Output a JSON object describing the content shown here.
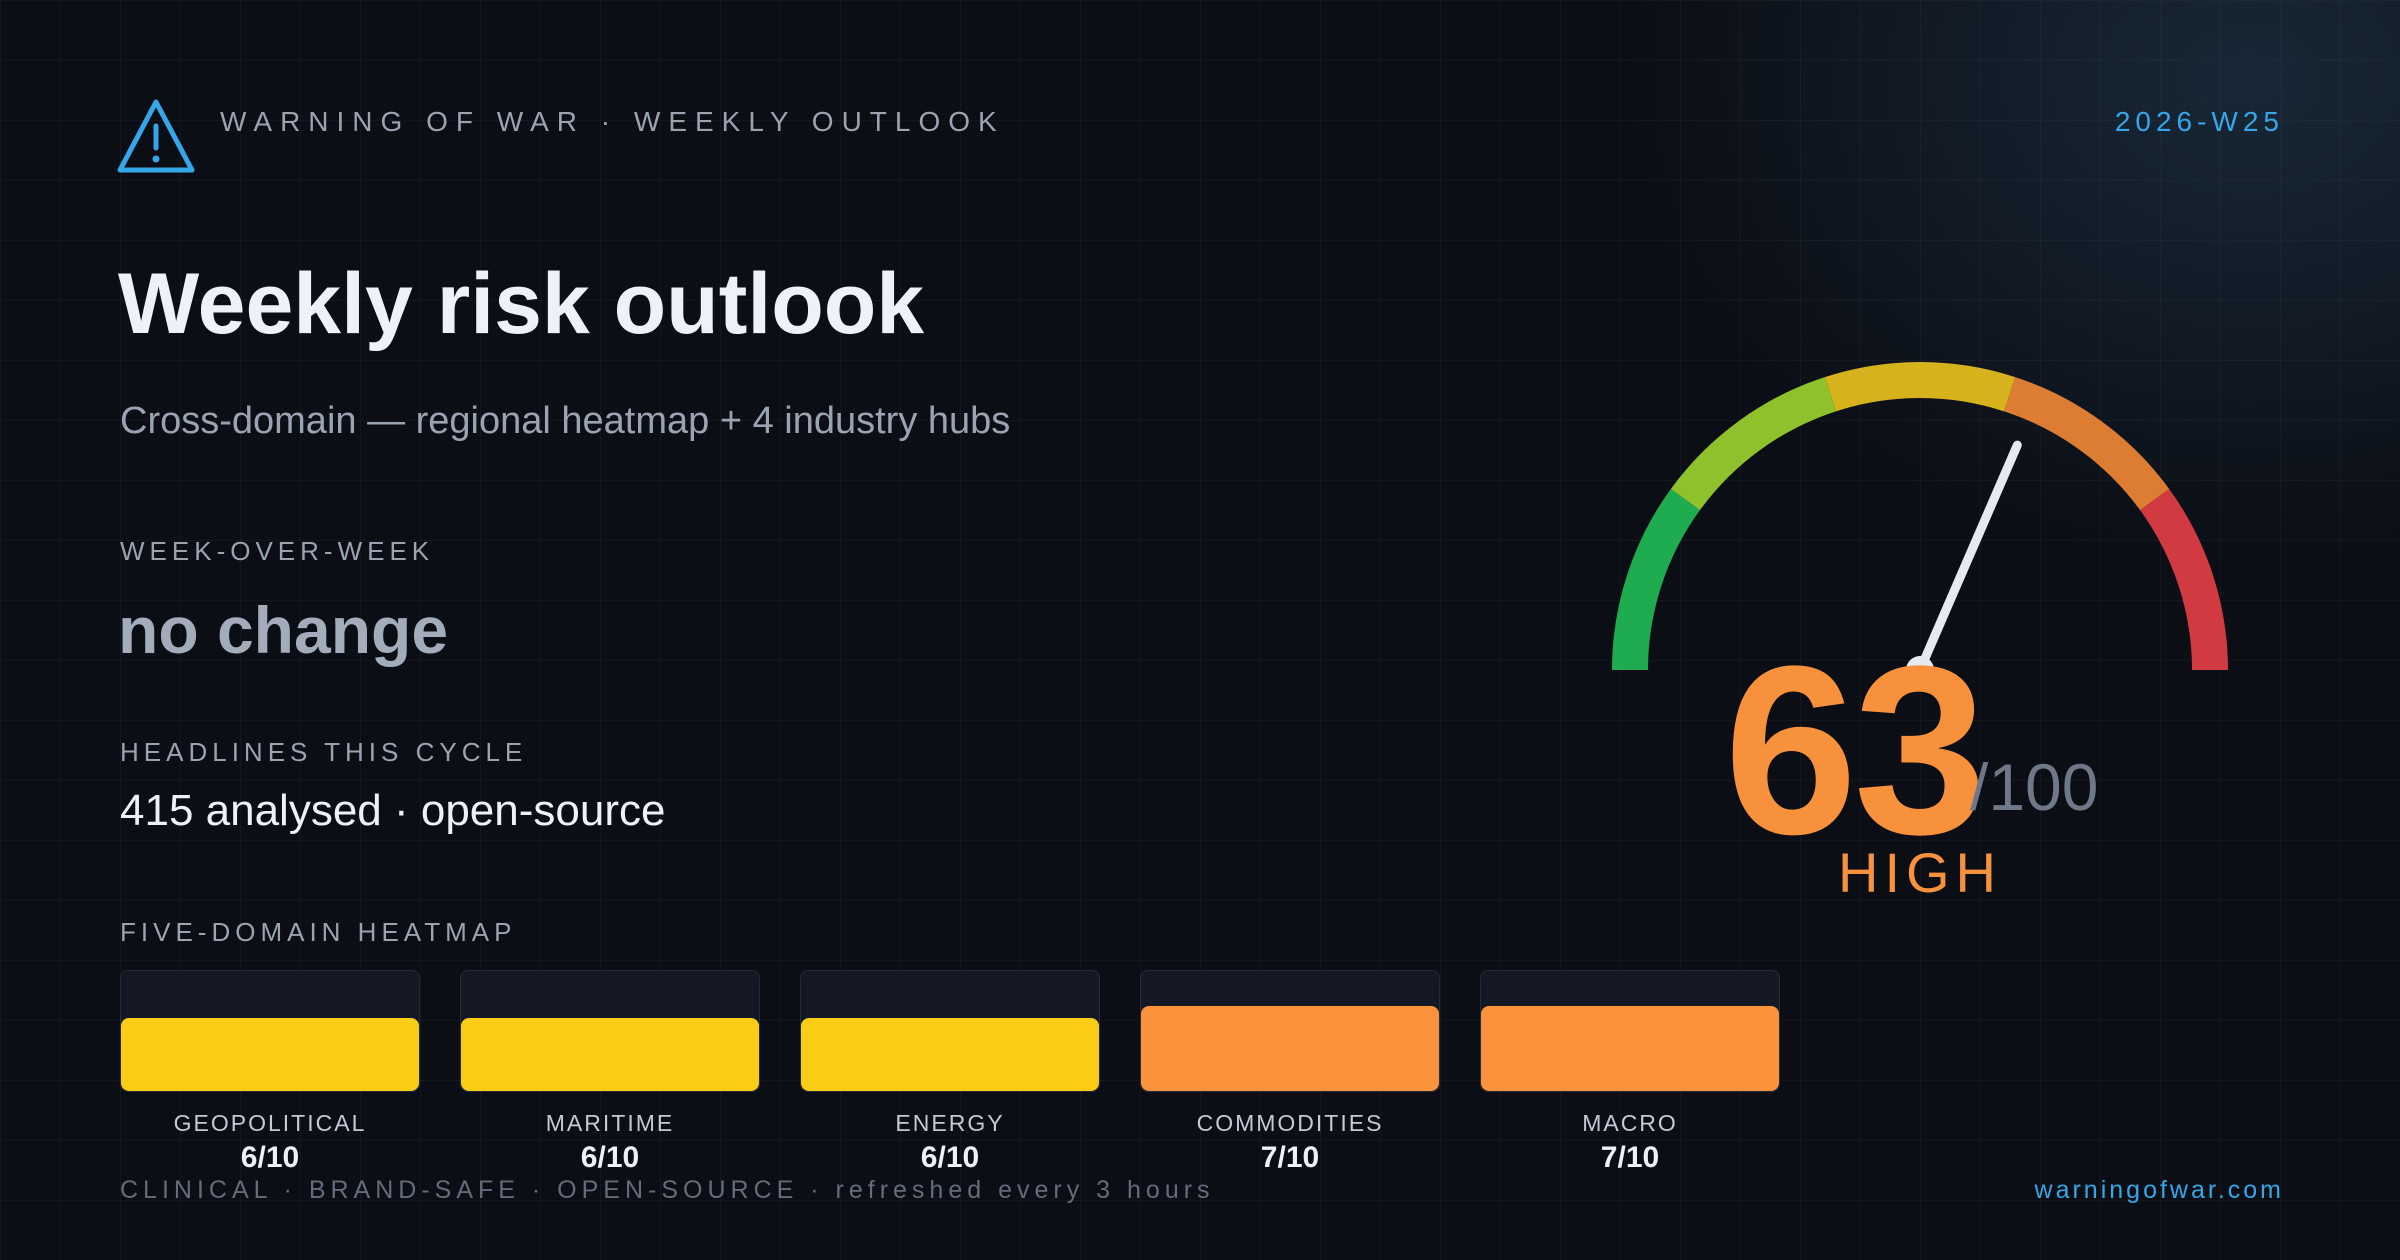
{
  "header": {
    "brand": "WARNING OF WAR · WEEKLY OUTLOOK",
    "week": "2026-W25",
    "icon": "warning-triangle-icon",
    "accent_color": "#35a6e8"
  },
  "main": {
    "title": "Weekly risk outlook",
    "subtitle": "Cross-domain — regional heatmap + 4 industry hubs",
    "week_over_week": {
      "label": "WEEK-OVER-WEEK",
      "value": "no change"
    },
    "headlines": {
      "label": "HEADLINES THIS CYCLE",
      "value": "415 analysed · open-source"
    }
  },
  "heatmap": {
    "label": "FIVE-DOMAIN HEATMAP",
    "domains": [
      {
        "name": "GEOPOLITICAL",
        "score_text": "6/10",
        "score": 6,
        "max": 10,
        "color": "#facc15"
      },
      {
        "name": "MARITIME",
        "score_text": "6/10",
        "score": 6,
        "max": 10,
        "color": "#facc15"
      },
      {
        "name": "ENERGY",
        "score_text": "6/10",
        "score": 6,
        "max": 10,
        "color": "#facc15"
      },
      {
        "name": "COMMODITIES",
        "score_text": "7/10",
        "score": 7,
        "max": 10,
        "color": "#fb923c"
      },
      {
        "name": "MACRO",
        "score_text": "7/10",
        "score": 7,
        "max": 10,
        "color": "#fb923c"
      }
    ]
  },
  "gauge": {
    "score": "63",
    "max_text": "/100",
    "value": 63,
    "max": 100,
    "level": "HIGH",
    "level_color": "#f7913c",
    "segment_colors": [
      "#1fab4f",
      "#8fc12c",
      "#d6b21c",
      "#dc7d33",
      "#d13a40"
    ]
  },
  "footer": {
    "tagline": "CLINICAL · BRAND-SAFE · OPEN-SOURCE · refreshed every 3 hours",
    "site": "warningofwar.com"
  }
}
